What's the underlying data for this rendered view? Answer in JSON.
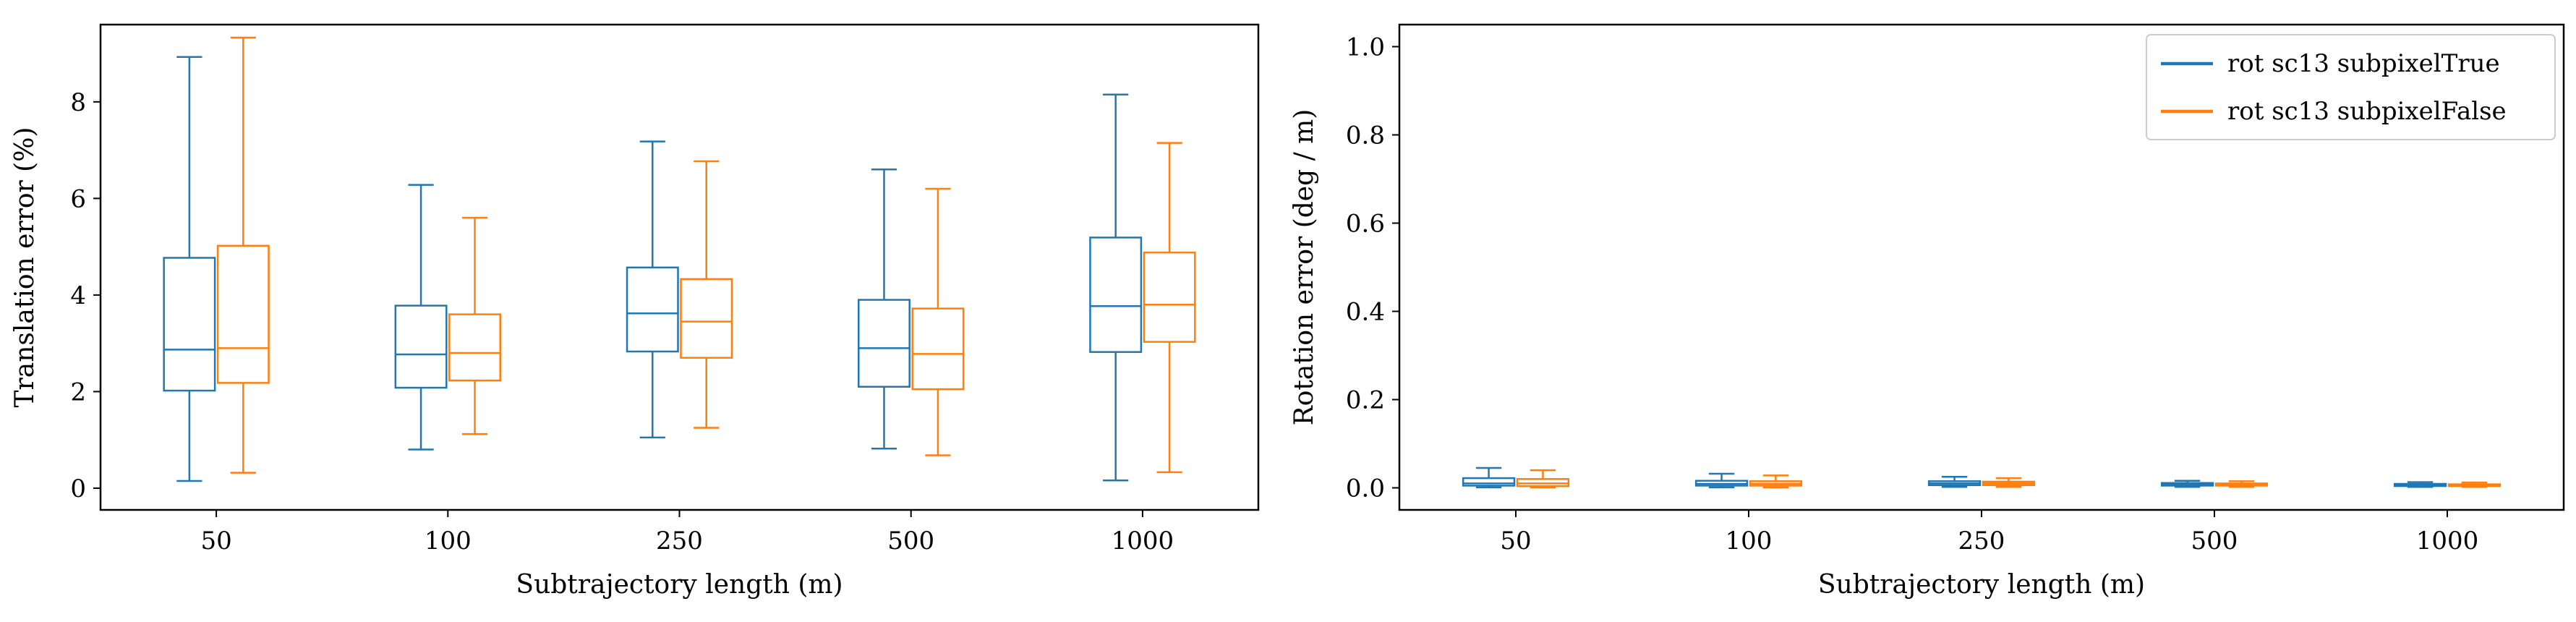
{
  "colors": {
    "series_true": "#1f77b4",
    "series_false": "#ff7f0e"
  },
  "legend": {
    "placement": "top-right",
    "entries": [
      {
        "label": "rot sc13 subpixelTrue",
        "color": "#1f77b4"
      },
      {
        "label": "rot sc13 subpixelFalse",
        "color": "#ff7f0e"
      }
    ]
  },
  "chart_data": [
    {
      "type": "box",
      "title": "",
      "xlabel": "Subtrajectory length (m)",
      "ylabel": "Translation error (%)",
      "categories": [
        "50",
        "100",
        "250",
        "500",
        "1000"
      ],
      "ylim": [
        -0.45,
        9.6
      ],
      "yticks": [
        "0",
        "2",
        "4",
        "6",
        "8"
      ],
      "ytick_values": [
        0,
        2,
        4,
        6,
        8
      ],
      "grid": false,
      "series": [
        {
          "name": "rot sc13 subpixelTrue",
          "color": "#1f77b4",
          "boxes": [
            {
              "whisker_low": 0.15,
              "q1": 2.02,
              "median": 2.87,
              "q3": 4.77,
              "whisker_high": 8.93
            },
            {
              "whisker_low": 0.8,
              "q1": 2.08,
              "median": 2.77,
              "q3": 3.78,
              "whisker_high": 6.28
            },
            {
              "whisker_low": 1.05,
              "q1": 2.83,
              "median": 3.62,
              "q3": 4.57,
              "whisker_high": 7.18
            },
            {
              "whisker_low": 0.82,
              "q1": 2.1,
              "median": 2.9,
              "q3": 3.9,
              "whisker_high": 6.6
            },
            {
              "whisker_low": 0.16,
              "q1": 2.82,
              "median": 3.77,
              "q3": 5.19,
              "whisker_high": 8.15
            }
          ]
        },
        {
          "name": "rot sc13 subpixelFalse",
          "color": "#ff7f0e",
          "boxes": [
            {
              "whisker_low": 0.32,
              "q1": 2.18,
              "median": 2.9,
              "q3": 5.02,
              "whisker_high": 9.33
            },
            {
              "whisker_low": 1.12,
              "q1": 2.23,
              "median": 2.8,
              "q3": 3.6,
              "whisker_high": 5.6
            },
            {
              "whisker_low": 1.25,
              "q1": 2.7,
              "median": 3.45,
              "q3": 4.33,
              "whisker_high": 6.77
            },
            {
              "whisker_low": 0.68,
              "q1": 2.05,
              "median": 2.78,
              "q3": 3.72,
              "whisker_high": 6.2
            },
            {
              "whisker_low": 0.33,
              "q1": 3.03,
              "median": 3.8,
              "q3": 4.88,
              "whisker_high": 7.15
            }
          ]
        }
      ]
    },
    {
      "type": "box",
      "title": "",
      "xlabel": "Subtrajectory length (m)",
      "ylabel": "Rotation error (deg / m)",
      "categories": [
        "50",
        "100",
        "250",
        "500",
        "1000"
      ],
      "ylim": [
        -0.05,
        1.05
      ],
      "yticks": [
        "0.0",
        "0.2",
        "0.4",
        "0.6",
        "0.8",
        "1.0"
      ],
      "ytick_values": [
        0,
        0.2,
        0.4,
        0.6,
        0.8,
        1.0
      ],
      "grid": false,
      "series": [
        {
          "name": "rot sc13 subpixelTrue",
          "color": "#1f77b4",
          "boxes": [
            {
              "whisker_low": 0.001,
              "q1": 0.005,
              "median": 0.01,
              "q3": 0.022,
              "whisker_high": 0.045
            },
            {
              "whisker_low": 0.001,
              "q1": 0.005,
              "median": 0.009,
              "q3": 0.016,
              "whisker_high": 0.032
            },
            {
              "whisker_low": 0.002,
              "q1": 0.006,
              "median": 0.01,
              "q3": 0.015,
              "whisker_high": 0.025
            },
            {
              "whisker_low": 0.002,
              "q1": 0.005,
              "median": 0.008,
              "q3": 0.011,
              "whisker_high": 0.016
            },
            {
              "whisker_low": 0.002,
              "q1": 0.004,
              "median": 0.007,
              "q3": 0.009,
              "whisker_high": 0.013
            }
          ]
        },
        {
          "name": "rot sc13 subpixelFalse",
          "color": "#ff7f0e",
          "boxes": [
            {
              "whisker_low": 0.001,
              "q1": 0.004,
              "median": 0.01,
              "q3": 0.02,
              "whisker_high": 0.04
            },
            {
              "whisker_low": 0.001,
              "q1": 0.005,
              "median": 0.009,
              "q3": 0.015,
              "whisker_high": 0.028
            },
            {
              "whisker_low": 0.002,
              "q1": 0.006,
              "median": 0.01,
              "q3": 0.014,
              "whisker_high": 0.022
            },
            {
              "whisker_low": 0.002,
              "q1": 0.005,
              "median": 0.007,
              "q3": 0.01,
              "whisker_high": 0.015
            },
            {
              "whisker_low": 0.002,
              "q1": 0.004,
              "median": 0.006,
              "q3": 0.008,
              "whisker_high": 0.012
            }
          ]
        }
      ]
    }
  ]
}
